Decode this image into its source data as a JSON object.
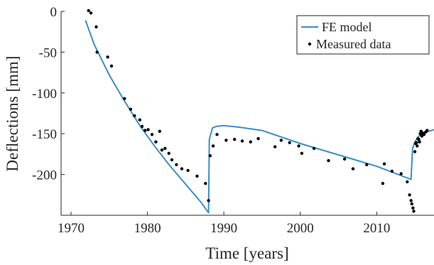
{
  "chart_data": {
    "type": "line",
    "title": "",
    "xlabel": "Time [years]",
    "ylabel": "Deflections [mm]",
    "xlim": [
      1968.7,
      2017.5
    ],
    "ylim": [
      -250,
      0
    ],
    "xticks": [
      1970,
      1980,
      1990,
      2000,
      2010
    ],
    "yticks": [
      0,
      -50,
      -100,
      -150,
      -200
    ],
    "xtick_labels": [
      "1970",
      "1980",
      "1990",
      "2000",
      "2010"
    ],
    "ytick_labels": [
      "0",
      "-50",
      "-100",
      "-150",
      "-200"
    ],
    "grid": false,
    "legend_position": "top-right",
    "series": [
      {
        "name": "FE model",
        "type": "line",
        "color": "#3a8fc4",
        "x": [
          1971.9,
          1973.0,
          1975.0,
          1977.0,
          1979.0,
          1981.0,
          1983.0,
          1985.0,
          1987.0,
          1988.0,
          1988.1,
          1988.5,
          1989.0,
          1990.0,
          1992.0,
          1995.0,
          2000.0,
          2005.0,
          2010.0,
          2014.5,
          2014.6,
          2014.7,
          2015.0,
          2015.5,
          2016.5,
          2017.5
        ],
        "y": [
          -11,
          -40,
          -78,
          -110,
          -140,
          -166,
          -190,
          -212,
          -234,
          -247,
          -157,
          -143,
          -141,
          -140,
          -142,
          -146,
          -162,
          -176,
          -190,
          -206,
          -185,
          -168,
          -160,
          -153,
          -148,
          -145
        ]
      },
      {
        "name": "Measured data",
        "type": "scatter",
        "color": "#000000",
        "x": [
          1972.3,
          1972.6,
          1973.3,
          1973.4,
          1974.8,
          1975.3,
          1977.0,
          1977.8,
          1978.3,
          1979.0,
          1979.3,
          1979.7,
          1980.1,
          1980.6,
          1981.1,
          1981.6,
          1981.9,
          1982.3,
          1982.8,
          1983.2,
          1983.8,
          1984.5,
          1985.3,
          1986.5,
          1987.6,
          1988.0,
          1988.2,
          1988.6,
          1989.1,
          1990.3,
          1991.4,
          1992.4,
          1993.5,
          1994.5,
          1996.7,
          1997.5,
          1998.6,
          1999.8,
          2000.2,
          2001.8,
          2003.7,
          2005.8,
          2006.9,
          2008.7,
          2010.8,
          2011.0,
          2012.0,
          2013.2,
          2014.0,
          2014.3,
          2014.5,
          2014.6,
          2014.75,
          2014.85,
          2015.0,
          2015.1,
          2015.2,
          2015.3,
          2015.4,
          2015.5,
          2015.6,
          2015.7,
          2015.8,
          2015.9,
          2016.0,
          2016.2,
          2016.4,
          2016.6
        ],
        "y": [
          1,
          -2,
          -19,
          -50,
          -56,
          -67,
          -107,
          -120,
          -128,
          -133,
          -141,
          -146,
          -145,
          -151,
          -160,
          -147,
          -170,
          -168,
          -174,
          -182,
          -188,
          -193,
          -195,
          -202,
          -211,
          -232,
          -177,
          -165,
          -151,
          -158,
          -157,
          -159,
          -160,
          -156,
          -166,
          -158,
          -161,
          -165,
          -174,
          -168,
          -183,
          -181,
          -193,
          -188,
          -211,
          -187,
          -196,
          -199,
          -209,
          -225,
          -232,
          -236,
          -241,
          -245,
          -172,
          -162,
          -161,
          -165,
          -156,
          -157,
          -160,
          -150,
          -147,
          -153,
          -149,
          -151,
          -148,
          -146
        ]
      }
    ]
  }
}
